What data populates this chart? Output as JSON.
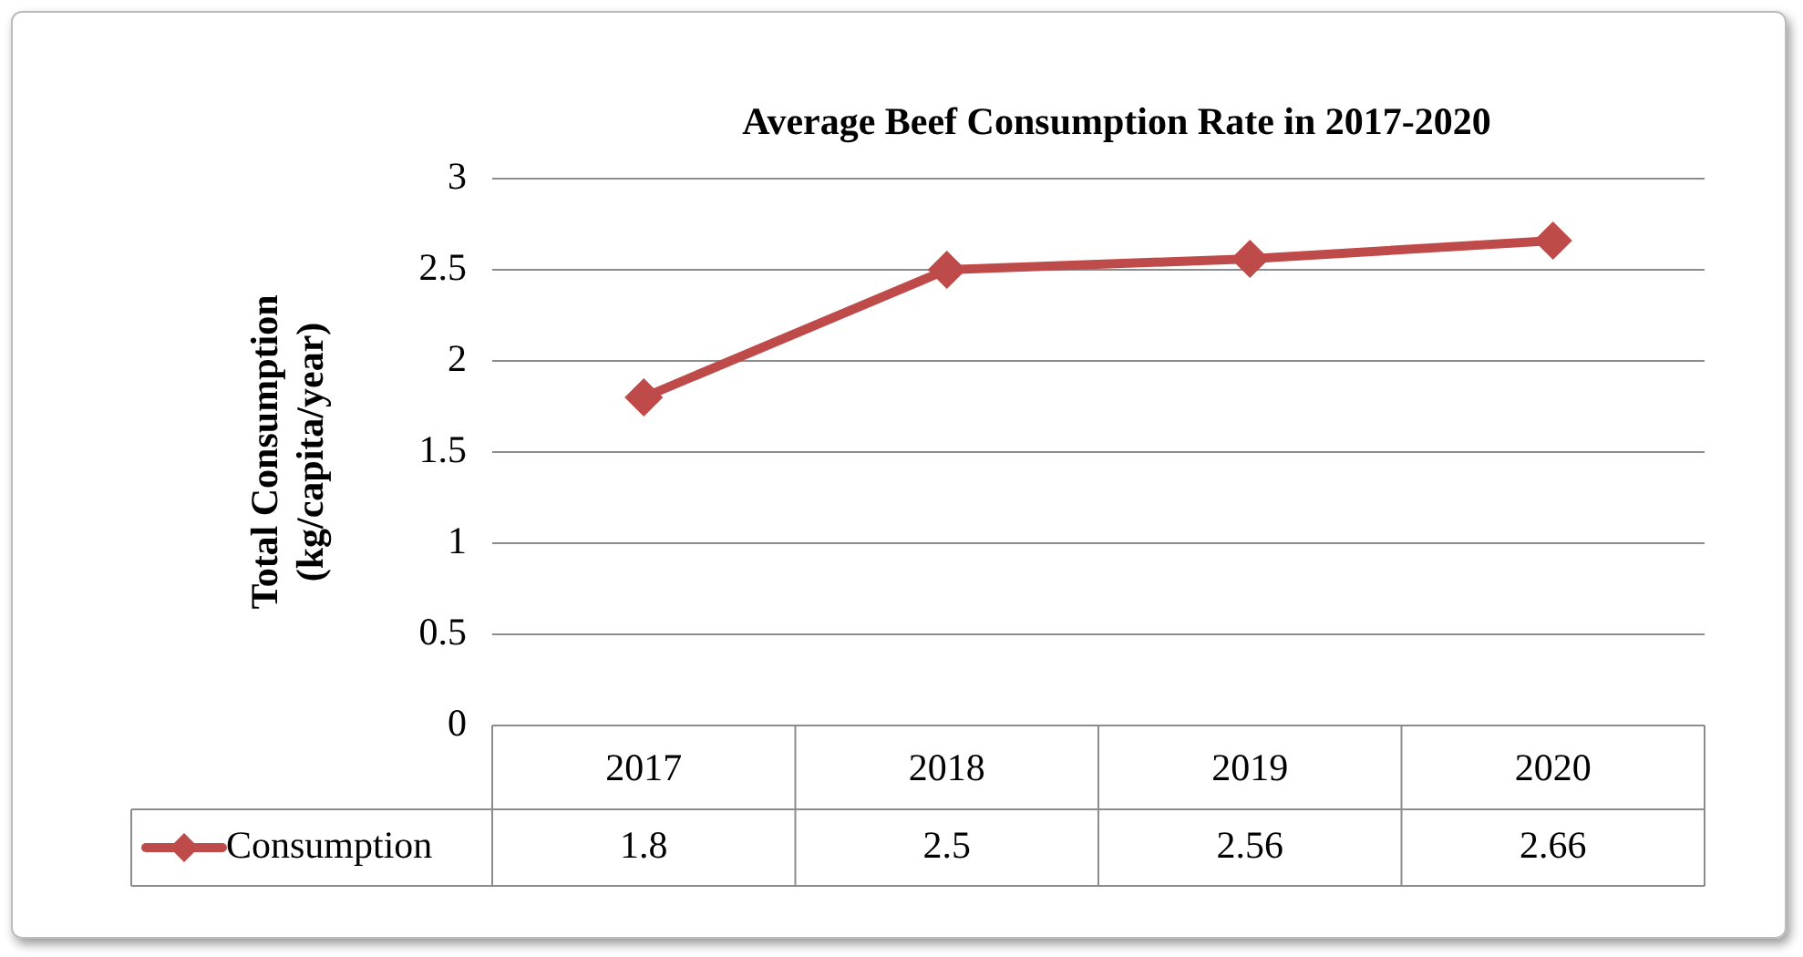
{
  "chart_data": {
    "type": "line",
    "title": "Average Beef Consumption Rate in 2017-2020",
    "ylabel": "Total Consumption (kg/capita/year)",
    "categories": [
      "2017",
      "2018",
      "2019",
      "2020"
    ],
    "series": [
      {
        "name": "Consumption",
        "color": "#be4b4a",
        "values": [
          1.8,
          2.5,
          2.56,
          2.66
        ]
      }
    ],
    "ylim": [
      0,
      3
    ],
    "yticks": [
      0,
      0.5,
      1,
      1.5,
      2,
      2.5,
      3
    ],
    "grid": "y",
    "marker": "diamond",
    "line_style": "solid",
    "legend": "bottom left",
    "data_labels": true
  }
}
